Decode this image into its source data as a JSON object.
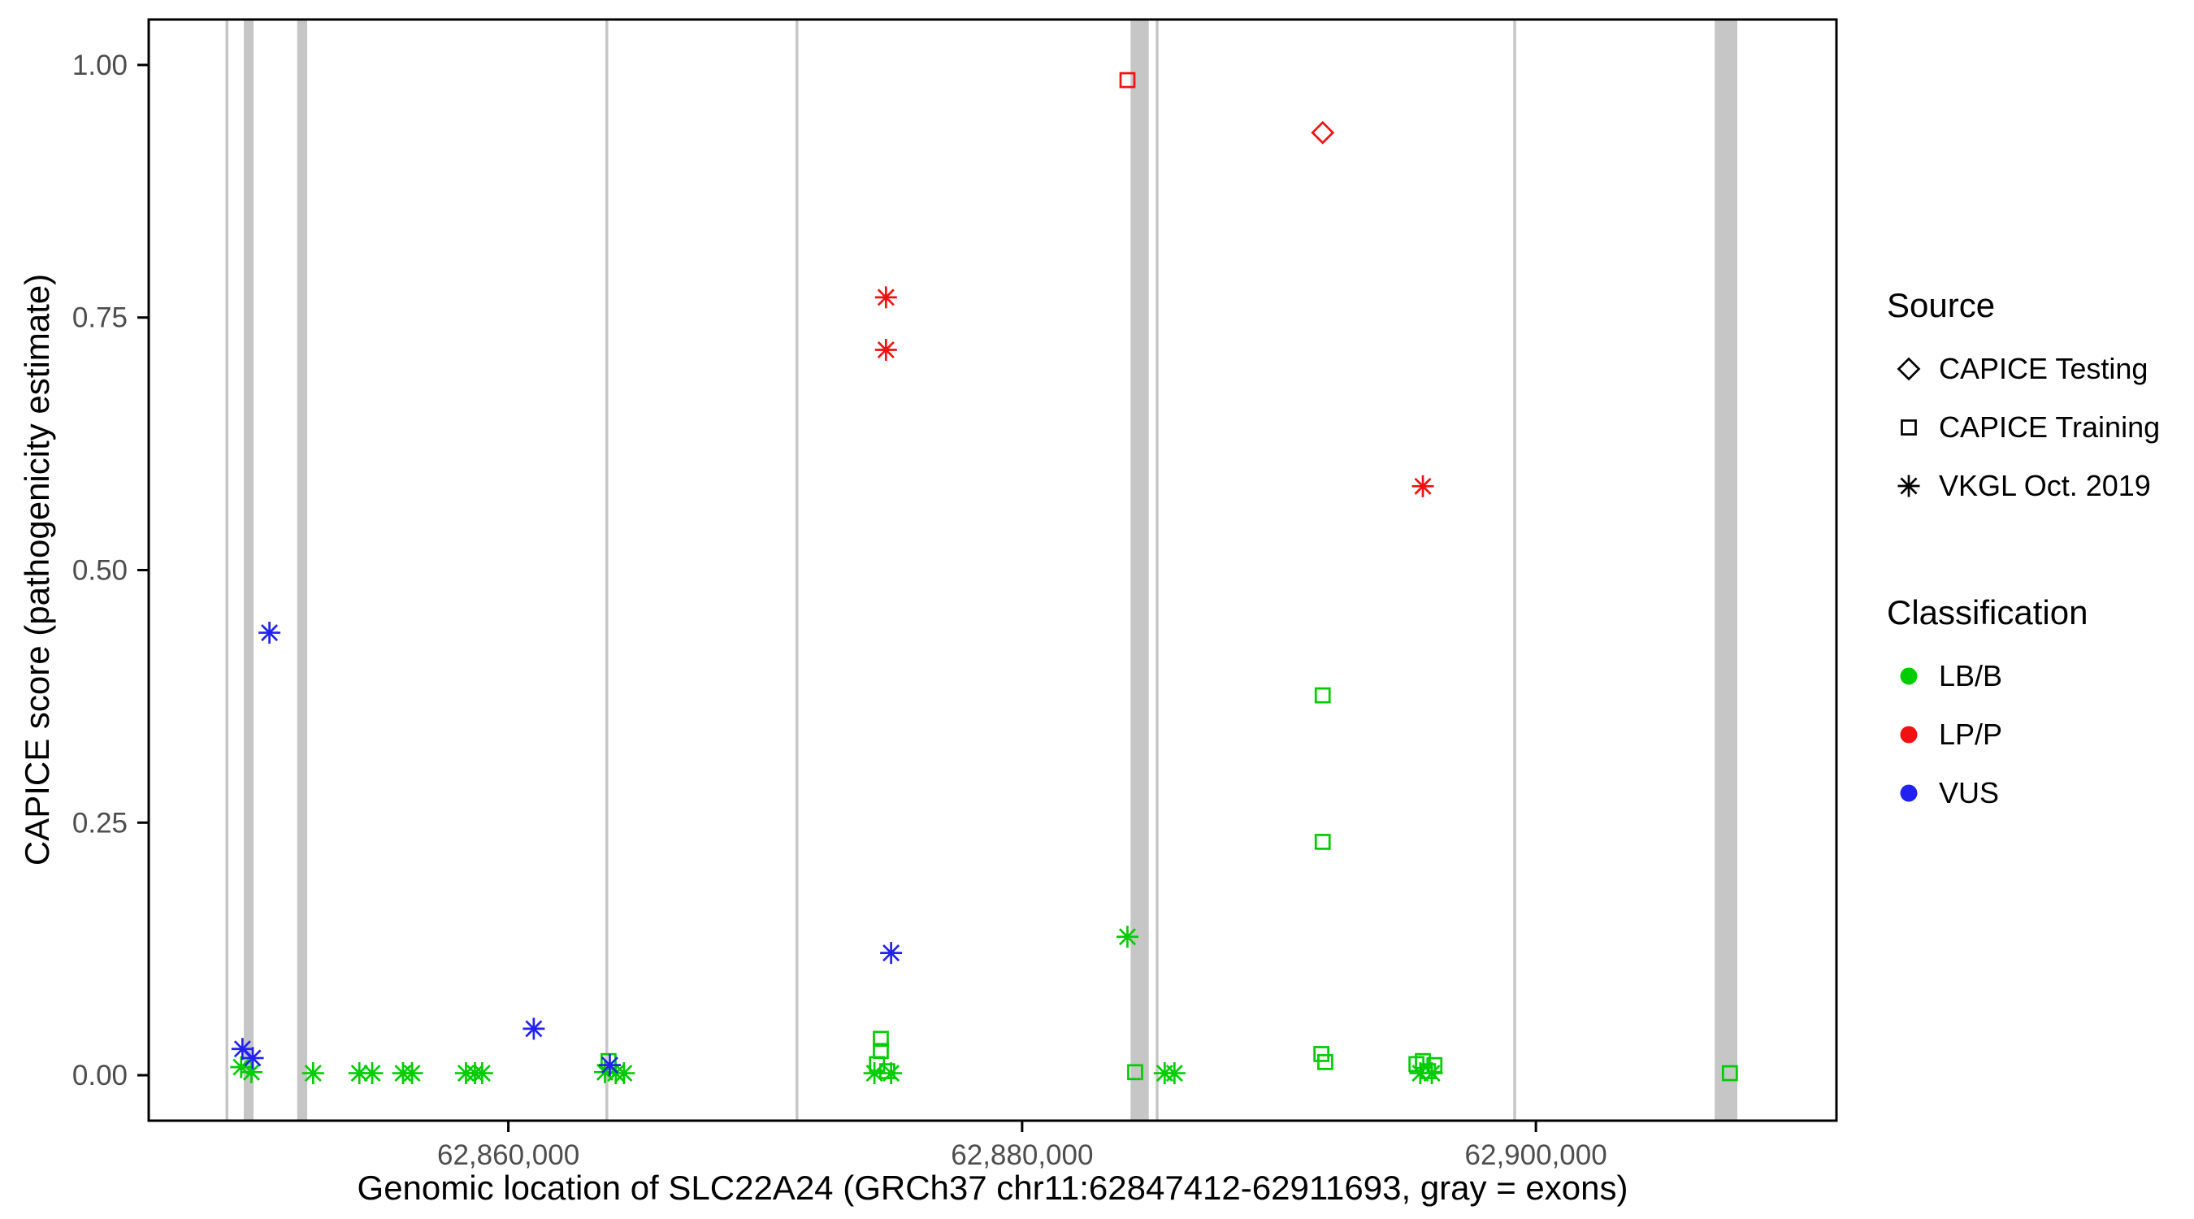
{
  "chart_data": {
    "type": "scatter",
    "title": "",
    "xlabel": "Genomic location of SLC22A24 (GRCh37 chr11:62847412-62911693, gray = exons)",
    "ylabel": "CAPICE score (pathogenicity estimate)",
    "xlim": [
      62846000,
      62911700
    ],
    "ylim": [
      -0.045,
      1.045
    ],
    "grid": false,
    "panel_background": "#ffffff",
    "panel_border_color": "#000000",
    "tick_label_color": "#4d4d4d",
    "exon_color": "#c6c6c6",
    "x_ticks": [
      {
        "value": 62860000,
        "label": "62,860,000"
      },
      {
        "value": 62880000,
        "label": "62,880,000"
      },
      {
        "value": 62900000,
        "label": "62,900,000"
      }
    ],
    "y_ticks": [
      {
        "value": 0.0,
        "label": "0.00"
      },
      {
        "value": 0.25,
        "label": "0.25"
      },
      {
        "value": 0.5,
        "label": "0.50"
      },
      {
        "value": 0.75,
        "label": "0.75"
      },
      {
        "value": 1.0,
        "label": "1.00"
      }
    ],
    "exons": [
      [
        62848990,
        62849100
      ],
      [
        62849700,
        62850080
      ],
      [
        62851780,
        62852170
      ],
      [
        62863780,
        62863890
      ],
      [
        62871180,
        62871290
      ],
      [
        62884220,
        62884930
      ],
      [
        62885200,
        62885310
      ],
      [
        62899120,
        62899230
      ],
      [
        62906960,
        62907840
      ]
    ],
    "series_colors": {
      "LB/B": "#00cc00",
      "LP/P": "#f01111",
      "VUS": "#2222f0"
    },
    "source_shapes": {
      "CAPICE Testing": "diamond",
      "CAPICE Training": "square",
      "VKGL Oct. 2019": "asterisk"
    },
    "points": [
      {
        "x": 62849600,
        "y": 0.008,
        "source": "VKGL Oct. 2019",
        "classification": "LB/B"
      },
      {
        "x": 62850000,
        "y": 0.003,
        "source": "VKGL Oct. 2019",
        "classification": "LB/B"
      },
      {
        "x": 62852400,
        "y": 0.002,
        "source": "VKGL Oct. 2019",
        "classification": "LB/B"
      },
      {
        "x": 62854200,
        "y": 0.002,
        "source": "VKGL Oct. 2019",
        "classification": "LB/B"
      },
      {
        "x": 62854700,
        "y": 0.002,
        "source": "VKGL Oct. 2019",
        "classification": "LB/B"
      },
      {
        "x": 62855900,
        "y": 0.002,
        "source": "VKGL Oct. 2019",
        "classification": "LB/B"
      },
      {
        "x": 62856250,
        "y": 0.002,
        "source": "VKGL Oct. 2019",
        "classification": "LB/B"
      },
      {
        "x": 62858350,
        "y": 0.002,
        "source": "VKGL Oct. 2019",
        "classification": "LB/B"
      },
      {
        "x": 62858700,
        "y": 0.002,
        "source": "VKGL Oct. 2019",
        "classification": "LB/B"
      },
      {
        "x": 62858980,
        "y": 0.002,
        "source": "VKGL Oct. 2019",
        "classification": "LB/B"
      },
      {
        "x": 62863900,
        "y": 0.014,
        "source": "CAPICE Training",
        "classification": "LB/B"
      },
      {
        "x": 62863760,
        "y": 0.003,
        "source": "VKGL Oct. 2019",
        "classification": "LB/B"
      },
      {
        "x": 62864180,
        "y": 0.002,
        "source": "VKGL Oct. 2019",
        "classification": "LB/B"
      },
      {
        "x": 62864500,
        "y": 0.002,
        "source": "VKGL Oct. 2019",
        "classification": "LB/B"
      },
      {
        "x": 62874500,
        "y": 0.036,
        "source": "CAPICE Training",
        "classification": "LB/B"
      },
      {
        "x": 62874500,
        "y": 0.024,
        "source": "CAPICE Training",
        "classification": "LB/B"
      },
      {
        "x": 62874350,
        "y": 0.011,
        "source": "CAPICE Training",
        "classification": "LB/B"
      },
      {
        "x": 62874750,
        "y": 0.004,
        "source": "CAPICE Training",
        "classification": "LB/B"
      },
      {
        "x": 62874250,
        "y": 0.002,
        "source": "VKGL Oct. 2019",
        "classification": "LB/B"
      },
      {
        "x": 62874900,
        "y": 0.002,
        "source": "VKGL Oct. 2019",
        "classification": "LB/B"
      },
      {
        "x": 62884100,
        "y": 0.137,
        "source": "VKGL Oct. 2019",
        "classification": "LB/B"
      },
      {
        "x": 62884400,
        "y": 0.003,
        "source": "CAPICE Training",
        "classification": "LB/B"
      },
      {
        "x": 62885550,
        "y": 0.002,
        "source": "VKGL Oct. 2019",
        "classification": "LB/B"
      },
      {
        "x": 62885930,
        "y": 0.002,
        "source": "VKGL Oct. 2019",
        "classification": "LB/B"
      },
      {
        "x": 62891700,
        "y": 0.376,
        "source": "CAPICE Training",
        "classification": "LB/B"
      },
      {
        "x": 62891700,
        "y": 0.231,
        "source": "CAPICE Training",
        "classification": "LB/B"
      },
      {
        "x": 62891650,
        "y": 0.021,
        "source": "CAPICE Training",
        "classification": "LB/B"
      },
      {
        "x": 62891800,
        "y": 0.013,
        "source": "CAPICE Training",
        "classification": "LB/B"
      },
      {
        "x": 62895350,
        "y": 0.011,
        "source": "CAPICE Training",
        "classification": "LB/B"
      },
      {
        "x": 62895600,
        "y": 0.014,
        "source": "CAPICE Training",
        "classification": "LB/B"
      },
      {
        "x": 62895800,
        "y": 0.004,
        "source": "CAPICE Training",
        "classification": "LB/B"
      },
      {
        "x": 62896050,
        "y": 0.01,
        "source": "CAPICE Training",
        "classification": "LB/B"
      },
      {
        "x": 62895500,
        "y": 0.002,
        "source": "VKGL Oct. 2019",
        "classification": "LB/B"
      },
      {
        "x": 62895950,
        "y": 0.002,
        "source": "VKGL Oct. 2019",
        "classification": "LB/B"
      },
      {
        "x": 62907550,
        "y": 0.002,
        "source": "CAPICE Training",
        "classification": "LB/B"
      },
      {
        "x": 62850700,
        "y": 0.438,
        "source": "VKGL Oct. 2019",
        "classification": "VUS"
      },
      {
        "x": 62874900,
        "y": 0.121,
        "source": "VKGL Oct. 2019",
        "classification": "VUS"
      },
      {
        "x": 62860990,
        "y": 0.046,
        "source": "VKGL Oct. 2019",
        "classification": "VUS"
      },
      {
        "x": 62849650,
        "y": 0.026,
        "source": "VKGL Oct. 2019",
        "classification": "VUS"
      },
      {
        "x": 62850050,
        "y": 0.017,
        "source": "VKGL Oct. 2019",
        "classification": "VUS"
      },
      {
        "x": 62863950,
        "y": 0.01,
        "source": "VKGL Oct. 2019",
        "classification": "VUS"
      },
      {
        "x": 62874700,
        "y": 0.77,
        "source": "VKGL Oct. 2019",
        "classification": "LP/P"
      },
      {
        "x": 62874700,
        "y": 0.718,
        "source": "VKGL Oct. 2019",
        "classification": "LP/P"
      },
      {
        "x": 62895600,
        "y": 0.583,
        "source": "VKGL Oct. 2019",
        "classification": "LP/P"
      },
      {
        "x": 62884100,
        "y": 0.985,
        "source": "CAPICE Training",
        "classification": "LP/P"
      },
      {
        "x": 62891700,
        "y": 0.933,
        "source": "CAPICE Testing",
        "classification": "LP/P"
      }
    ]
  },
  "legend": {
    "source": {
      "title": "Source",
      "items": [
        {
          "label": "CAPICE Testing",
          "shape": "diamond"
        },
        {
          "label": "CAPICE Training",
          "shape": "square"
        },
        {
          "label": "VKGL Oct. 2019",
          "shape": "asterisk"
        }
      ]
    },
    "classification": {
      "title": "Classification",
      "items": [
        {
          "label": "LB/B",
          "color": "#00cc00"
        },
        {
          "label": "LP/P",
          "color": "#f01111"
        },
        {
          "label": "VUS",
          "color": "#2222f0"
        }
      ]
    }
  }
}
